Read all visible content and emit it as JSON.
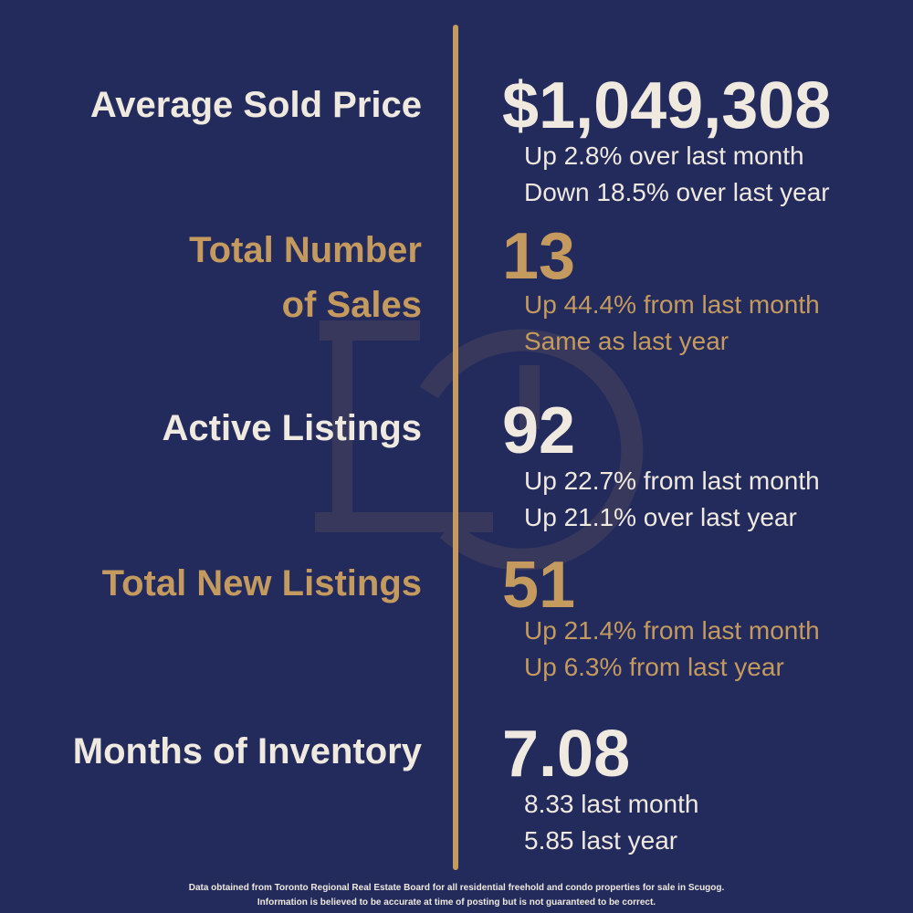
{
  "metrics": [
    {
      "label": [
        "Average Sold Price"
      ],
      "value": "$1,049,308",
      "details": [
        "Up 2.8% over last month",
        "Down 18.5% over last year"
      ],
      "color": "#efe9df"
    },
    {
      "label": [
        "Total Number",
        "of Sales"
      ],
      "value": "13",
      "details": [
        "Up 44.4% from last month",
        "Same as last year"
      ],
      "color": "#c49a5f"
    },
    {
      "label": [
        "Active Listings"
      ],
      "value": "92",
      "details": [
        "Up 22.7% from last month",
        "Up 21.1% over last year"
      ],
      "color": "#efe9df"
    },
    {
      "label": [
        "Total New Listings"
      ],
      "value": "51",
      "details": [
        "Up 21.4% from last month",
        "Up 6.3% from last year"
      ],
      "color": "#c49a5f"
    },
    {
      "label": [
        "Months of Inventory"
      ],
      "value": "7.08",
      "details": [
        "8.33 last month",
        "5.85 last year"
      ],
      "color": "#efe9df"
    }
  ],
  "footer": [
    "Data obtained from Toronto Regional Real Estate Board for all residential freehold and condo properties for sale in Scugog.",
    "Information is believed to be accurate at time of posting but is not guaranteed to be correct."
  ]
}
